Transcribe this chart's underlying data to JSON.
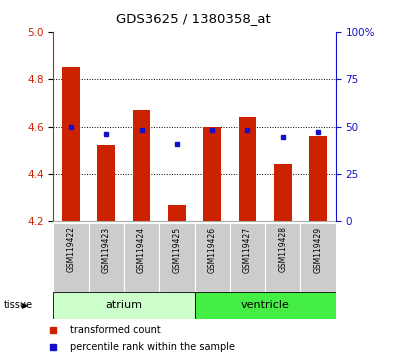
{
  "title": "GDS3625 / 1380358_at",
  "samples": [
    "GSM119422",
    "GSM119423",
    "GSM119424",
    "GSM119425",
    "GSM119426",
    "GSM119427",
    "GSM119428",
    "GSM119429"
  ],
  "transformed_count": [
    4.85,
    4.52,
    4.67,
    4.27,
    4.6,
    4.64,
    4.44,
    4.56
  ],
  "percentile_rank": [
    4.6,
    4.57,
    4.585,
    4.525,
    4.585,
    4.585,
    4.555,
    4.575
  ],
  "ymin": 4.2,
  "ymax": 5.0,
  "y_left_ticks": [
    4.2,
    4.4,
    4.6,
    4.8,
    5.0
  ],
  "y_right_ticks": [
    0,
    25,
    50,
    75,
    100
  ],
  "y_right_labels": [
    "0",
    "25",
    "50",
    "75",
    "100%"
  ],
  "groups": [
    {
      "label": "atrium",
      "start": 0,
      "end": 3,
      "color_light": "#c8f5c8",
      "color_dark": "#66dd66"
    },
    {
      "label": "ventricle",
      "start": 4,
      "end": 7,
      "color_light": "#44dd44",
      "color_dark": "#44dd44"
    }
  ],
  "bar_color": "#cc2200",
  "dot_color": "#1111cc",
  "bar_width": 0.5,
  "tick_label_bg": "#cccccc",
  "legend_items": [
    {
      "label": "transformed count",
      "color": "#cc2200"
    },
    {
      "label": "percentile rank within the sample",
      "color": "#1111cc"
    }
  ],
  "tissue_label": "tissue",
  "background_color": "#ffffff",
  "left_axis_color": "#cc2200",
  "right_axis_color": "#1111cc",
  "atrium_color": "#ccffcc",
  "ventricle_color": "#44ee44"
}
